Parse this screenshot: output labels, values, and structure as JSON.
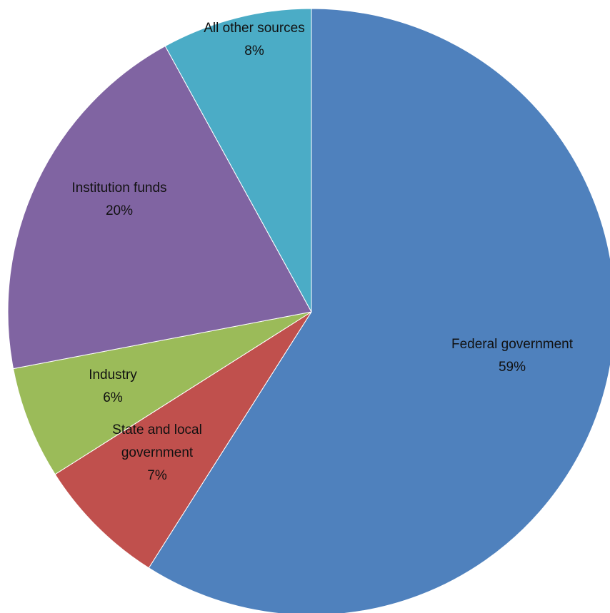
{
  "chart_data": {
    "type": "pie",
    "title": "",
    "slices": [
      {
        "label_lines": [
          "Federal government"
        ],
        "value": 59,
        "pct_label": "59%",
        "color": "#4F81BD"
      },
      {
        "label_lines": [
          "State and local",
          "government"
        ],
        "value": 7,
        "pct_label": "7%",
        "color": "#C0504D"
      },
      {
        "label_lines": [
          "Industry"
        ],
        "value": 6,
        "pct_label": "6%",
        "color": "#9BBB59"
      },
      {
        "label_lines": [
          "Institution funds"
        ],
        "value": 20,
        "pct_label": "20%",
        "color": "#8064A2"
      },
      {
        "label_lines": [
          "All other sources"
        ],
        "value": 8,
        "pct_label": "8%",
        "color": "#4BACC6"
      }
    ],
    "start": "12 o'clock",
    "direction": "clockwise",
    "legend": "none",
    "data_labels": "inside"
  }
}
